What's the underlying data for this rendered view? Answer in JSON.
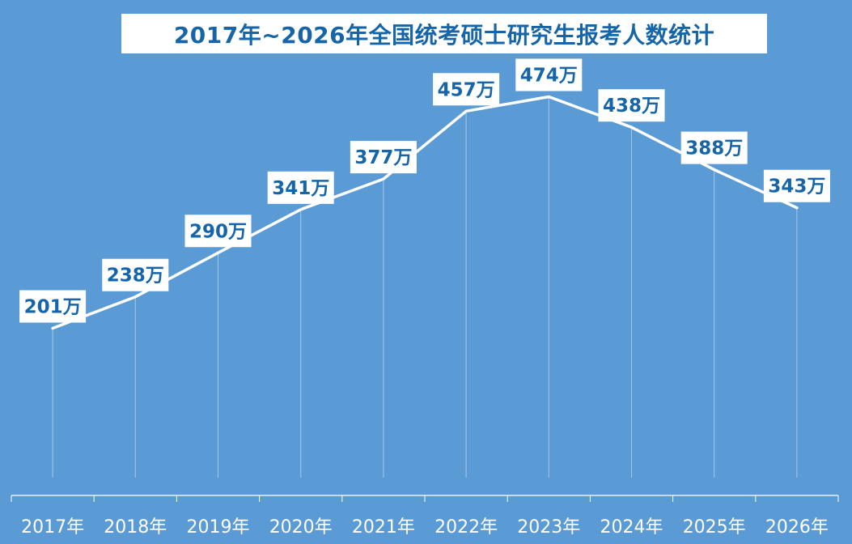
{
  "chart_data": {
    "type": "line",
    "title": "2017年~2026年全国统考硕士研究生报考人数统计",
    "categories": [
      "2017年",
      "2018年",
      "2019年",
      "2020年",
      "2021年",
      "2022年",
      "2023年",
      "2024年",
      "2025年",
      "2026年"
    ],
    "values": [
      201,
      238,
      290,
      341,
      377,
      457,
      474,
      438,
      388,
      343
    ],
    "data_labels": [
      "201万",
      "238万",
      "290万",
      "341万",
      "377万",
      "457万",
      "474万",
      "438万",
      "388万",
      "343万"
    ],
    "unit": "万",
    "ylim": [
      0,
      500
    ],
    "grid": false,
    "drop_lines": true,
    "legend": "none",
    "colors": {
      "background": "#5b9bd5",
      "line": "#ffffff",
      "label_box": "#ffffff",
      "label_text": "#1565a8",
      "axis": "#ffffff"
    }
  }
}
